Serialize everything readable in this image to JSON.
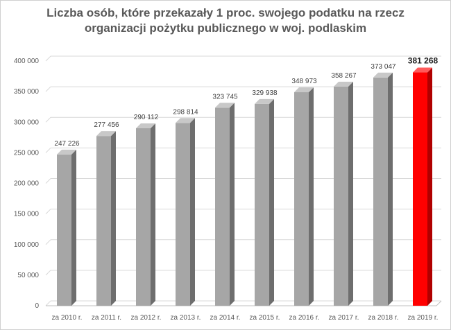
{
  "chart_data": {
    "type": "bar",
    "title_lines": [
      "Liczba osób, które przekazały 1 proc. swojego podatku na rzecz",
      "organizacji pożytku publicznego w woj. podlaskim"
    ],
    "categories": [
      "za 2010 r.",
      "za 2011 r.",
      "za 2012 r.",
      "za 2013 r.",
      "za 2014 r.",
      "za 2015 r.",
      "za 2016 r.",
      "za 2017 r.",
      "za 2018 r.",
      "za 2019 r."
    ],
    "values": [
      247226,
      277456,
      290112,
      298814,
      323745,
      329938,
      348973,
      358267,
      373047,
      381268
    ],
    "data_labels": [
      "247 226",
      "277 456",
      "290 112",
      "298 814",
      "323 745",
      "329 938",
      "348 973",
      "358 267",
      "373 047",
      "381 268"
    ],
    "ylim": [
      0,
      400000
    ],
    "yticks": [
      0,
      50000,
      100000,
      150000,
      200000,
      250000,
      300000,
      350000,
      400000
    ],
    "ytick_labels": [
      "0",
      "50 000",
      "100 000",
      "150 000",
      "200 000",
      "250 000",
      "300 000",
      "350 000",
      "400 000"
    ],
    "xlabel": "",
    "ylabel": "",
    "grid": "horizontal",
    "legend": "none",
    "highlight_index": 9,
    "colors": {
      "bar_front": "#a6a6a6",
      "bar_side": "#6e6e6e",
      "bar_top": "#c8c8c8",
      "highlight_front": "#ff0000",
      "highlight_side": "#b00000",
      "highlight_top": "#ff5a5a",
      "grid": "#d9d9d9",
      "floor": "#bfbfbf"
    }
  }
}
